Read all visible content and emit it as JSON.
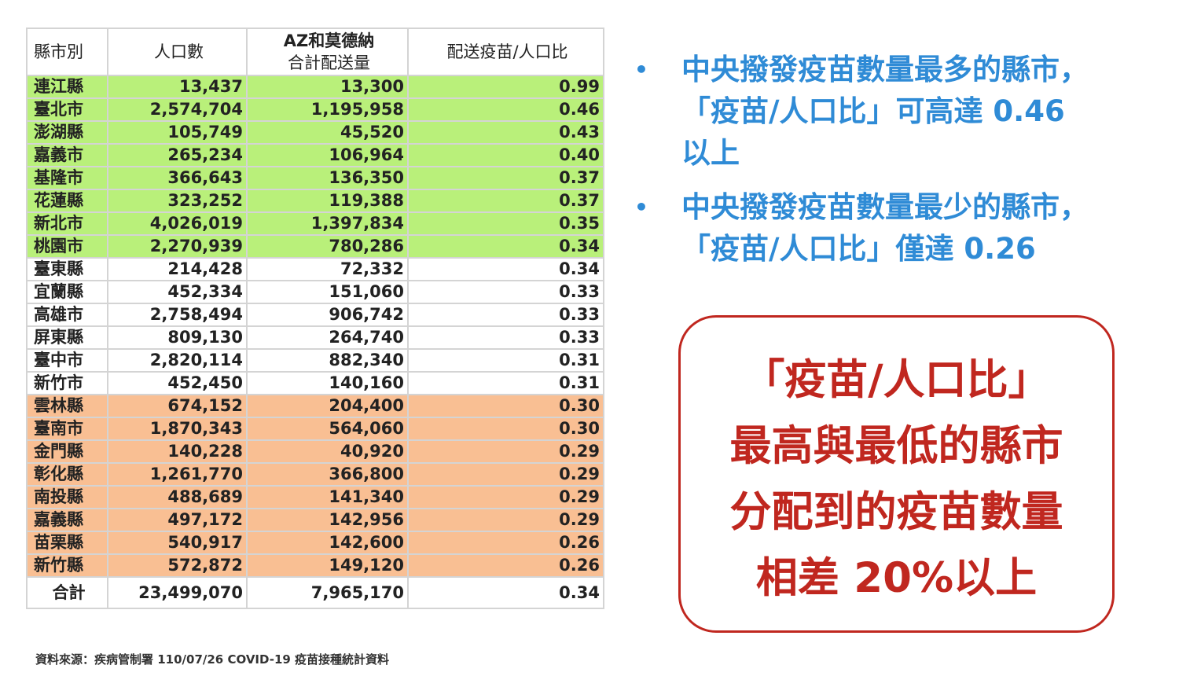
{
  "table": {
    "headers": {
      "county": "縣市別",
      "population": "人口數",
      "delivered_line1": "AZ和莫德納",
      "delivered_line2": "合計配送量",
      "ratio": "配送疫苗/人口比"
    },
    "row_colors": {
      "high": "#b9f07a",
      "middle": "#ffffff",
      "low": "#f9bf93"
    },
    "rows": [
      {
        "county": "連江縣",
        "population": "13,437",
        "delivered": "13,300",
        "ratio": "0.99",
        "group": "high"
      },
      {
        "county": "臺北市",
        "population": "2,574,704",
        "delivered": "1,195,958",
        "ratio": "0.46",
        "group": "high"
      },
      {
        "county": "澎湖縣",
        "population": "105,749",
        "delivered": "45,520",
        "ratio": "0.43",
        "group": "high"
      },
      {
        "county": "嘉義市",
        "population": "265,234",
        "delivered": "106,964",
        "ratio": "0.40",
        "group": "high"
      },
      {
        "county": "基隆市",
        "population": "366,643",
        "delivered": "136,350",
        "ratio": "0.37",
        "group": "high"
      },
      {
        "county": "花蓮縣",
        "population": "323,252",
        "delivered": "119,388",
        "ratio": "0.37",
        "group": "high"
      },
      {
        "county": "新北市",
        "population": "4,026,019",
        "delivered": "1,397,834",
        "ratio": "0.35",
        "group": "high"
      },
      {
        "county": "桃園市",
        "population": "2,270,939",
        "delivered": "780,286",
        "ratio": "0.34",
        "group": "high"
      },
      {
        "county": "臺東縣",
        "population": "214,428",
        "delivered": "72,332",
        "ratio": "0.34",
        "group": "middle"
      },
      {
        "county": "宜蘭縣",
        "population": "452,334",
        "delivered": "151,060",
        "ratio": "0.33",
        "group": "middle"
      },
      {
        "county": "高雄市",
        "population": "2,758,494",
        "delivered": "906,742",
        "ratio": "0.33",
        "group": "middle"
      },
      {
        "county": "屏東縣",
        "population": "809,130",
        "delivered": "264,740",
        "ratio": "0.33",
        "group": "middle"
      },
      {
        "county": "臺中市",
        "population": "2,820,114",
        "delivered": "882,340",
        "ratio": "0.31",
        "group": "middle"
      },
      {
        "county": "新竹市",
        "population": "452,450",
        "delivered": "140,160",
        "ratio": "0.31",
        "group": "middle"
      },
      {
        "county": "雲林縣",
        "population": "674,152",
        "delivered": "204,400",
        "ratio": "0.30",
        "group": "low"
      },
      {
        "county": "臺南市",
        "population": "1,870,343",
        "delivered": "564,060",
        "ratio": "0.30",
        "group": "low"
      },
      {
        "county": "金門縣",
        "population": "140,228",
        "delivered": "40,920",
        "ratio": "0.29",
        "group": "low"
      },
      {
        "county": "彰化縣",
        "population": "1,261,770",
        "delivered": "366,800",
        "ratio": "0.29",
        "group": "low"
      },
      {
        "county": "南投縣",
        "population": "488,689",
        "delivered": "141,340",
        "ratio": "0.29",
        "group": "low"
      },
      {
        "county": "嘉義縣",
        "population": "497,172",
        "delivered": "142,956",
        "ratio": "0.29",
        "group": "low"
      },
      {
        "county": "苗栗縣",
        "population": "540,917",
        "delivered": "142,600",
        "ratio": "0.26",
        "group": "low"
      },
      {
        "county": "新竹縣",
        "population": "572,872",
        "delivered": "149,120",
        "ratio": "0.26",
        "group": "low"
      }
    ],
    "total": {
      "label": "合計",
      "population": "23,499,070",
      "delivered": "7,965,170",
      "ratio": "0.34"
    }
  },
  "source_note": "資料來源：疾病管制署 110/07/26 COVID-19 疫苗接種統計資料",
  "bullets": {
    "marker": "•",
    "color": "#2f8bd6",
    "items": [
      {
        "lines": [
          "中央撥發疫苗數量最多的縣市，",
          "「疫苗/人口比」可高達 0.46",
          "以上"
        ]
      },
      {
        "lines": [
          "中央撥發疫苗數量最少的縣市，",
          "「疫苗/人口比」僅達 0.26"
        ]
      }
    ]
  },
  "callout": {
    "color": "#c0271f",
    "lines": [
      "「疫苗/人口比」",
      "最高與最低的縣市",
      "分配到的疫苗數量",
      "相差  20%以上"
    ]
  }
}
